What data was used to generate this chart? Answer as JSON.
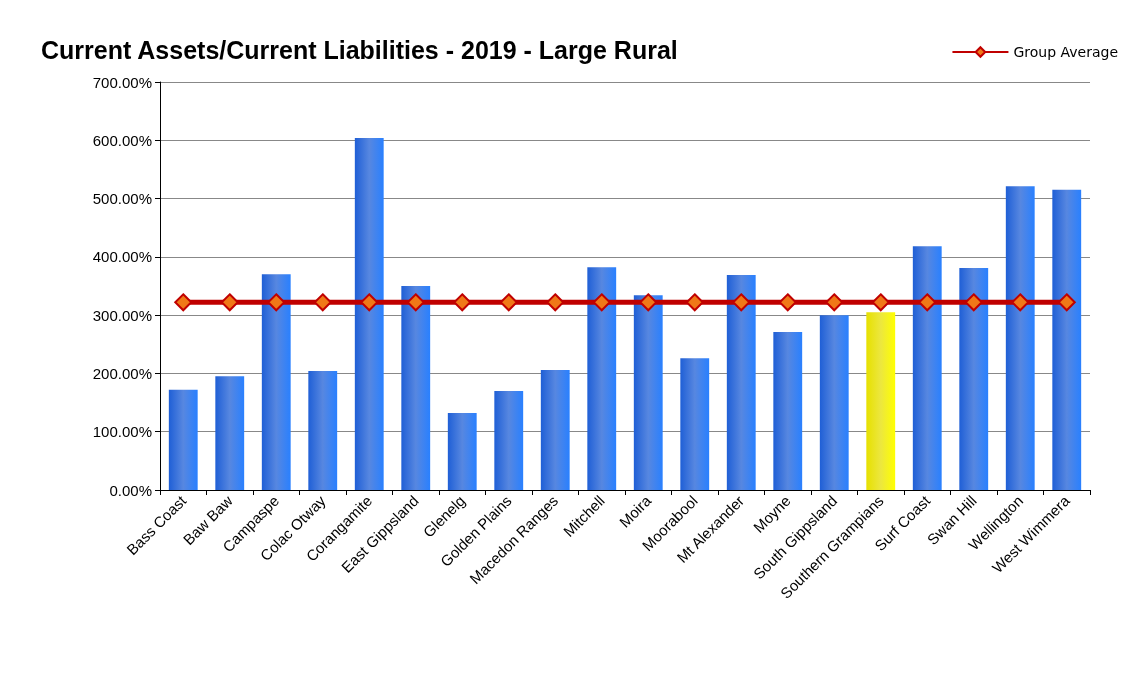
{
  "chart_data": {
    "type": "bar",
    "title": "Current Assets/Current Liabilities - 2019 - Large Rural",
    "categories": [
      "Bass Coast",
      "Baw Baw",
      "Campaspe",
      "Colac Otway",
      "Corangamite",
      "East Gippsland",
      "Glenelg",
      "Golden Plains",
      "Macedon Ranges",
      "Mitchell",
      "Moira",
      "Moorabool",
      "Mt Alexander",
      "Moyne",
      "South Gippsland",
      "Southern Grampians",
      "Surf Coast",
      "Swan Hill",
      "Wellington",
      "West Wimmera"
    ],
    "series": [
      {
        "colors": [
          "#1f5fd6",
          "#1f5fd6",
          "#1f5fd6",
          "#1f5fd6",
          "#1f5fd6",
          "#1f5fd6",
          "#1f5fd6",
          "#1f5fd6",
          "#1f5fd6",
          "#1f5fd6",
          "#1f5fd6",
          "#1f5fd6",
          "#1f5fd6",
          "#1f5fd6",
          "#1f5fd6",
          "#e6e000",
          "#1f5fd6",
          "#1f5fd6",
          "#1f5fd6",
          "#1f5fd6"
        ],
        "values": [
          172,
          195,
          370,
          204,
          604,
          350,
          132,
          170,
          206,
          382,
          334,
          226,
          369,
          271,
          300,
          305,
          418,
          381,
          521,
          515
        ]
      },
      {
        "type": "line",
        "name": "Group Average",
        "color": "#c00000",
        "marker": "diamond",
        "values": [
          322,
          322,
          322,
          322,
          322,
          322,
          322,
          322,
          322,
          322,
          322,
          322,
          322,
          322,
          322,
          322,
          322,
          322,
          322,
          322
        ]
      }
    ],
    "ylim": [
      0,
      700
    ],
    "yticks": [
      {
        "value": 0,
        "label": "0.00%"
      },
      {
        "value": 100,
        "label": "100.00%"
      },
      {
        "value": 200,
        "label": "200.00%"
      },
      {
        "value": 300,
        "label": "300.00%"
      },
      {
        "value": 400,
        "label": "400.00%"
      },
      {
        "value": 500,
        "label": "500.00%"
      },
      {
        "value": 600,
        "label": "600.00%"
      },
      {
        "value": 700,
        "label": "700.00%"
      }
    ],
    "grid": "y",
    "legend": "top right"
  }
}
